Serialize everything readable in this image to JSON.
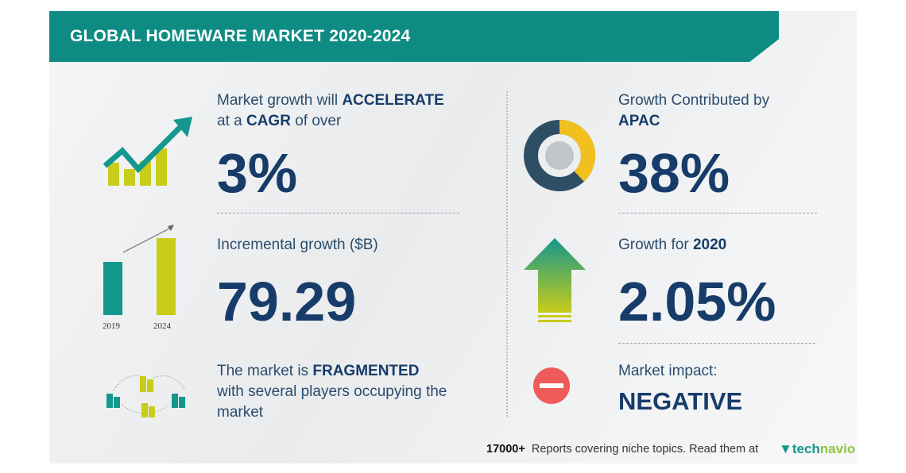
{
  "header": {
    "title": "GLOBAL HOMEWARE MARKET 2020-2024"
  },
  "cagr": {
    "text_pre": "Market growth will",
    "text_bold1": "ACCELERATE",
    "text_mid": "at a",
    "text_bold2": "CAGR",
    "text_post": "of over",
    "value": "3%"
  },
  "incremental": {
    "label": "Incremental growth ($B)",
    "value": "79.29",
    "bar_labels": [
      "2019",
      "2024"
    ]
  },
  "market": {
    "text_pre": "The market is",
    "text_bold": "FRAGMENTED",
    "text_post": "with several players occupying the market"
  },
  "apac": {
    "label": "Growth Contributed by",
    "region": "APAC",
    "value": "38%",
    "share": 38
  },
  "growth_year": {
    "label": "Growth for",
    "year": "2020",
    "value": "2.05%"
  },
  "impact": {
    "label": "Market impact:",
    "value": "NEGATIVE"
  },
  "footer": {
    "count": "17000+",
    "text": "Reports covering niche topics. Read them at",
    "brand_a": "tech",
    "brand_b": "navio"
  },
  "colors": {
    "teal": "#0e8c83",
    "navy": "#173c6a",
    "lime": "#c8cc1a",
    "yellow": "#f2c01e",
    "red": "#ef5a5a"
  }
}
